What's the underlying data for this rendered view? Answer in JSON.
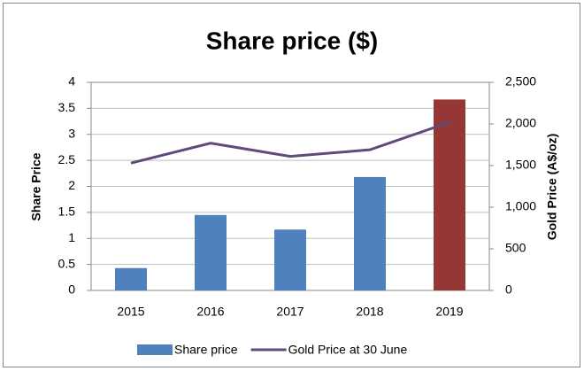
{
  "chart_data": {
    "type": "bar_line",
    "title": "Share price ($)",
    "y_label": "Share Price",
    "y2_label": "Gold Price (A$/oz)",
    "categories": [
      "2015",
      "2016",
      "2017",
      "2018",
      "2019"
    ],
    "series": [
      {
        "name": "Share price",
        "type": "bar",
        "color": "#4f81bd",
        "colors": [
          "#4f81bd",
          "#4f81bd",
          "#4f81bd",
          "#4f81bd",
          "#953735"
        ],
        "values": [
          0.43,
          1.45,
          1.17,
          2.18,
          3.67
        ]
      },
      {
        "name": "Gold Price at 30 June",
        "type": "line",
        "axis": "y2",
        "color": "#604a7b",
        "values": [
          1530,
          1770,
          1610,
          1690,
          2020
        ]
      }
    ],
    "ylim": [
      0,
      4
    ],
    "yticks": [
      0,
      0.5,
      1,
      1.5,
      2,
      2.5,
      3,
      3.5,
      4
    ],
    "y2lim": [
      0,
      2500
    ],
    "y2ticks": [
      0,
      500,
      {
        "value": 1000,
        "label": "1,000"
      },
      {
        "value": 1500,
        "label": "1,500"
      },
      {
        "value": 2000,
        "label": "2,000"
      },
      {
        "value": 2500,
        "label": "2,500"
      }
    ],
    "grid": true,
    "legend": "bottom"
  }
}
